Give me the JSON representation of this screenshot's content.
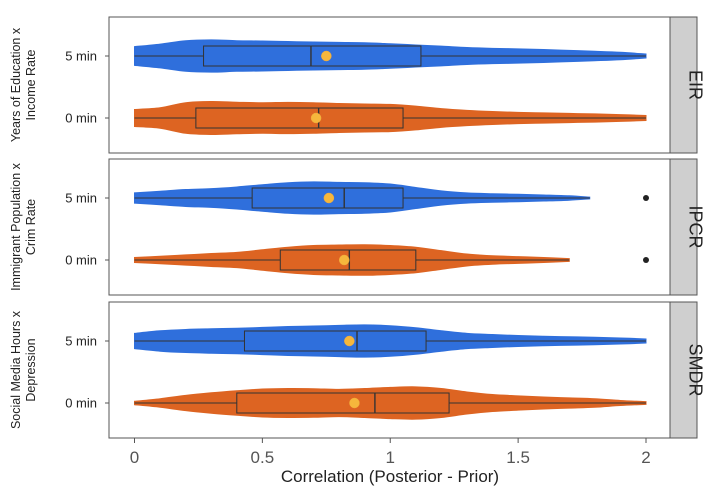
{
  "chart_data": {
    "type": "violin",
    "xlabel": "Correlation (Posterior - Prior)",
    "xlim": [
      0,
      2
    ],
    "xticks": [
      "0",
      "0.5",
      "1",
      "1.5",
      "2"
    ],
    "colors": {
      "5 min": "#2f6fdc",
      "0 min": "#dd6422"
    },
    "legend": "none",
    "panels": [
      {
        "strip": "EIR",
        "ylabel": [
          "Years of Education x",
          "Income Rate"
        ],
        "groups": [
          {
            "label": "5 min",
            "color": "#2f6fdc",
            "box": {
              "q1": 0.27,
              "median": 0.69,
              "q3": 1.12
            },
            "whisker": [
              0,
              2
            ],
            "mean": 0.75,
            "outliers": [],
            "density": [
              [
                0,
                0.55
              ],
              [
                0.1,
                0.7
              ],
              [
                0.2,
                0.9
              ],
              [
                0.3,
                0.95
              ],
              [
                0.4,
                0.9
              ],
              [
                0.5,
                0.88
              ],
              [
                0.6,
                0.85
              ],
              [
                0.7,
                0.82
              ],
              [
                0.8,
                0.8
              ],
              [
                0.9,
                0.78
              ],
              [
                1.0,
                0.72
              ],
              [
                1.1,
                0.65
              ],
              [
                1.2,
                0.58
              ],
              [
                1.3,
                0.5
              ],
              [
                1.4,
                0.45
              ],
              [
                1.5,
                0.42
              ],
              [
                1.6,
                0.38
              ],
              [
                1.7,
                0.33
              ],
              [
                1.8,
                0.28
              ],
              [
                1.9,
                0.22
              ],
              [
                2.0,
                0.12
              ]
            ]
          },
          {
            "label": "0 min",
            "color": "#dd6422",
            "box": {
              "q1": 0.24,
              "median": 0.72,
              "q3": 1.05
            },
            "whisker": [
              0,
              2
            ],
            "mean": 0.71,
            "outliers": [],
            "density": [
              [
                0,
                0.5
              ],
              [
                0.1,
                0.6
              ],
              [
                0.2,
                0.9
              ],
              [
                0.3,
                0.97
              ],
              [
                0.4,
                0.93
              ],
              [
                0.5,
                0.9
              ],
              [
                0.6,
                0.92
              ],
              [
                0.7,
                0.9
              ],
              [
                0.8,
                0.85
              ],
              [
                0.9,
                0.82
              ],
              [
                1.0,
                0.8
              ],
              [
                1.1,
                0.7
              ],
              [
                1.2,
                0.55
              ],
              [
                1.3,
                0.45
              ],
              [
                1.4,
                0.38
              ],
              [
                1.5,
                0.33
              ],
              [
                1.6,
                0.3
              ],
              [
                1.7,
                0.27
              ],
              [
                1.8,
                0.24
              ],
              [
                1.9,
                0.2
              ],
              [
                2.0,
                0.15
              ]
            ]
          }
        ]
      },
      {
        "strip": "IPCR",
        "ylabel": [
          "Immigrant Population x",
          "Crim Rate"
        ],
        "groups": [
          {
            "label": "5 min",
            "color": "#2f6fdc",
            "box": {
              "q1": 0.46,
              "median": 0.82,
              "q3": 1.05
            },
            "whisker": [
              0,
              1.78
            ],
            "mean": 0.76,
            "outliers": [
              2.0
            ],
            "density": [
              [
                0,
                0.3
              ],
              [
                0.1,
                0.4
              ],
              [
                0.2,
                0.5
              ],
              [
                0.3,
                0.55
              ],
              [
                0.4,
                0.65
              ],
              [
                0.5,
                0.78
              ],
              [
                0.6,
                0.9
              ],
              [
                0.7,
                0.95
              ],
              [
                0.8,
                0.92
              ],
              [
                0.9,
                0.9
              ],
              [
                1.0,
                0.82
              ],
              [
                1.1,
                0.62
              ],
              [
                1.2,
                0.42
              ],
              [
                1.3,
                0.3
              ],
              [
                1.4,
                0.25
              ],
              [
                1.5,
                0.22
              ],
              [
                1.6,
                0.18
              ],
              [
                1.7,
                0.13
              ],
              [
                1.78,
                0.05
              ]
            ]
          },
          {
            "label": "0 min",
            "color": "#dd6422",
            "box": {
              "q1": 0.57,
              "median": 0.84,
              "q3": 1.1
            },
            "whisker": [
              0,
              1.7
            ],
            "mean": 0.82,
            "outliers": [
              2.0
            ],
            "density": [
              [
                0,
                0.15
              ],
              [
                0.1,
                0.22
              ],
              [
                0.2,
                0.3
              ],
              [
                0.3,
                0.38
              ],
              [
                0.4,
                0.45
              ],
              [
                0.5,
                0.6
              ],
              [
                0.6,
                0.75
              ],
              [
                0.7,
                0.85
              ],
              [
                0.8,
                0.88
              ],
              [
                0.9,
                0.9
              ],
              [
                1.0,
                0.85
              ],
              [
                1.1,
                0.75
              ],
              [
                1.2,
                0.55
              ],
              [
                1.3,
                0.35
              ],
              [
                1.4,
                0.25
              ],
              [
                1.5,
                0.2
              ],
              [
                1.6,
                0.15
              ],
              [
                1.7,
                0.08
              ]
            ]
          }
        ]
      },
      {
        "strip": "SMDR",
        "ylabel": [
          "Social Media Hours x",
          "Depression"
        ],
        "groups": [
          {
            "label": "5 min",
            "color": "#2f6fdc",
            "box": {
              "q1": 0.43,
              "median": 0.87,
              "q3": 1.14
            },
            "whisker": [
              0,
              2
            ],
            "mean": 0.84,
            "outliers": [],
            "density": [
              [
                0,
                0.45
              ],
              [
                0.1,
                0.6
              ],
              [
                0.2,
                0.68
              ],
              [
                0.3,
                0.72
              ],
              [
                0.4,
                0.75
              ],
              [
                0.5,
                0.8
              ],
              [
                0.6,
                0.85
              ],
              [
                0.7,
                0.88
              ],
              [
                0.8,
                0.92
              ],
              [
                0.9,
                0.95
              ],
              [
                1.0,
                0.9
              ],
              [
                1.1,
                0.78
              ],
              [
                1.2,
                0.6
              ],
              [
                1.3,
                0.45
              ],
              [
                1.4,
                0.38
              ],
              [
                1.5,
                0.32
              ],
              [
                1.6,
                0.28
              ],
              [
                1.7,
                0.25
              ],
              [
                1.8,
                0.22
              ],
              [
                1.9,
                0.18
              ],
              [
                2.0,
                0.12
              ]
            ]
          },
          {
            "label": "0 min",
            "color": "#dd6422",
            "box": {
              "q1": 0.4,
              "median": 0.94,
              "q3": 1.23
            },
            "whisker": [
              0,
              2
            ],
            "mean": 0.86,
            "outliers": [],
            "density": [
              [
                0,
                0.1
              ],
              [
                0.1,
                0.25
              ],
              [
                0.2,
                0.45
              ],
              [
                0.3,
                0.6
              ],
              [
                0.4,
                0.72
              ],
              [
                0.5,
                0.82
              ],
              [
                0.6,
                0.85
              ],
              [
                0.7,
                0.84
              ],
              [
                0.8,
                0.8
              ],
              [
                0.9,
                0.85
              ],
              [
                1.0,
                0.92
              ],
              [
                1.1,
                0.95
              ],
              [
                1.2,
                0.85
              ],
              [
                1.3,
                0.65
              ],
              [
                1.4,
                0.5
              ],
              [
                1.5,
                0.42
              ],
              [
                1.6,
                0.35
              ],
              [
                1.7,
                0.3
              ],
              [
                1.8,
                0.25
              ],
              [
                1.9,
                0.15
              ],
              [
                2.0,
                0.08
              ]
            ]
          }
        ]
      }
    ]
  }
}
